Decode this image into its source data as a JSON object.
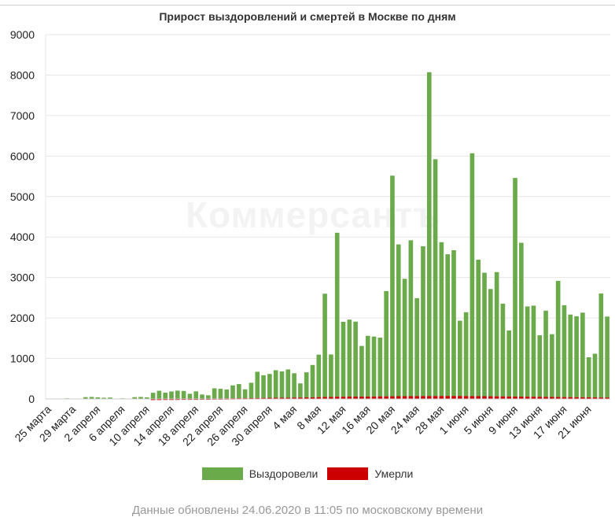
{
  "chart_data": {
    "type": "bar",
    "stacked": true,
    "title": "Прирост выздоровлений и смертей в Москве по дням",
    "watermark": "Коммерсантъ",
    "ylim": [
      0,
      9000
    ],
    "yticks": [
      0,
      1000,
      2000,
      3000,
      4000,
      5000,
      6000,
      7000,
      8000,
      9000
    ],
    "grid": true,
    "legend_position": "bottom",
    "x_tick_labels": [
      "25 марта",
      "29 марта",
      "2 апреля",
      "6 апреля",
      "10 апреля",
      "14 апреля",
      "18 апреля",
      "22 апреля",
      "26 апреля",
      "30 апреля",
      "4 мая",
      "8 мая",
      "12 мая",
      "16 мая",
      "20 мая",
      "24 мая",
      "28 мая",
      "1 июня",
      "5 июня",
      "9 июня",
      "13 июня",
      "17 июня",
      "21 июня"
    ],
    "categories": [
      "25 марта",
      "26 марта",
      "27 марта",
      "28 марта",
      "29 марта",
      "30 марта",
      "31 марта",
      "1 апреля",
      "2 апреля",
      "3 апреля",
      "4 апреля",
      "5 апреля",
      "6 апреля",
      "7 апреля",
      "8 апреля",
      "9 апреля",
      "10 апреля",
      "11 апреля",
      "12 апреля",
      "13 апреля",
      "14 апреля",
      "15 апреля",
      "16 апреля",
      "17 апреля",
      "18 апреля",
      "19 апреля",
      "20 апреля",
      "21 апреля",
      "22 апреля",
      "23 апреля",
      "24 апреля",
      "25 апреля",
      "26 апреля",
      "27 апреля",
      "28 апреля",
      "29 апреля",
      "30 апреля",
      "1 мая",
      "2 мая",
      "3 мая",
      "4 мая",
      "5 мая",
      "6 мая",
      "7 мая",
      "8 мая",
      "9 мая",
      "10 мая",
      "11 мая",
      "12 мая",
      "13 мая",
      "14 мая",
      "15 мая",
      "16 мая",
      "17 мая",
      "18 мая",
      "19 мая",
      "20 мая",
      "21 мая",
      "22 мая",
      "23 мая",
      "24 мая",
      "25 мая",
      "26 мая",
      "27 мая",
      "28 мая",
      "29 мая",
      "30 мая",
      "31 мая",
      "1 июня",
      "2 июня",
      "3 июня",
      "4 июня",
      "5 июня",
      "6 июня",
      "7 июня",
      "8 июня",
      "9 июня",
      "10 июня",
      "11 июня",
      "12 июня",
      "13 июня",
      "14 июня",
      "15 июня",
      "16 июня",
      "17 июня",
      "18 июня",
      "19 июня",
      "20 июня",
      "21 июня",
      "22 июня",
      "23 июня",
      "24 июня"
    ],
    "series": [
      {
        "name": "Выздоровели",
        "color": "#6aaa4b",
        "values": [
          5,
          10,
          5,
          15,
          10,
          5,
          45,
          50,
          40,
          30,
          35,
          10,
          15,
          5,
          45,
          50,
          40,
          150,
          200,
          150,
          180,
          200,
          190,
          120,
          180,
          100,
          80,
          250,
          240,
          220,
          320,
          350,
          220,
          380,
          650,
          560,
          590,
          680,
          650,
          700,
          600,
          350,
          620,
          800,
          1050,
          2550,
          1050,
          4050,
          1850,
          1900,
          1850,
          1250,
          1500,
          1480,
          1450,
          2600,
          5450,
          3750,
          2900,
          3850,
          2420,
          3700,
          8000,
          5850,
          3800,
          3500,
          3600,
          1860,
          2070,
          6000,
          3370,
          3050,
          2650,
          3070,
          2290,
          1630,
          5400,
          3800,
          2230,
          2250,
          1520,
          2130,
          1550,
          2870,
          2270,
          2040,
          2000,
          2090,
          990,
          1080,
          2570,
          2000
        ]
      },
      {
        "name": "Умерли",
        "color": "#cc0000",
        "values": [
          0,
          0,
          0,
          0,
          0,
          0,
          0,
          0,
          0,
          0,
          0,
          0,
          0,
          0,
          0,
          0,
          0,
          2,
          3,
          5,
          5,
          6,
          8,
          8,
          8,
          10,
          10,
          12,
          12,
          14,
          16,
          18,
          18,
          20,
          22,
          25,
          28,
          30,
          30,
          30,
          35,
          35,
          38,
          40,
          45,
          50,
          50,
          55,
          55,
          60,
          60,
          60,
          60,
          62,
          65,
          65,
          66,
          68,
          68,
          70,
          70,
          72,
          72,
          72,
          73,
          74,
          74,
          74,
          72,
          70,
          70,
          68,
          66,
          65,
          64,
          62,
          60,
          58,
          56,
          55,
          54,
          52,
          50,
          48,
          46,
          45,
          43,
          42,
          40,
          38,
          36,
          35
        ]
      }
    ]
  },
  "legend": {
    "items": [
      {
        "label": "Выздоровели",
        "color": "#6aaa4b"
      },
      {
        "label": "Умерли",
        "color": "#cc0000"
      }
    ]
  },
  "footer": {
    "note": "Данные обновлены 24.06.2020 в 11:05 по московскому времени"
  }
}
